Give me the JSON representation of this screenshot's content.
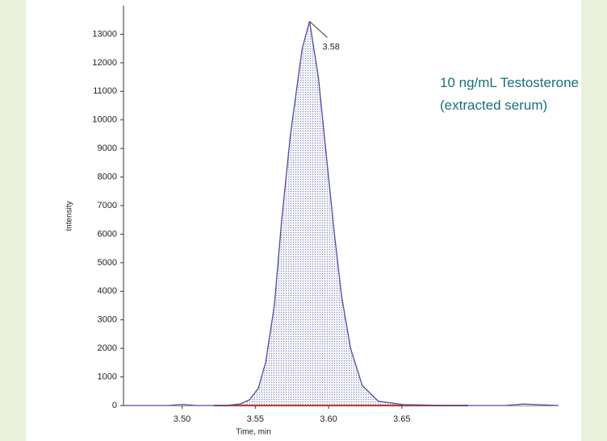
{
  "chart_data": {
    "type": "line",
    "x_label": "Time, min",
    "y_label": "Intensity",
    "annotation": [
      "10 ng/mL Testosterone",
      "(extracted serum)"
    ],
    "peak_label": "3.58",
    "x": [
      3.46,
      3.49,
      3.5,
      3.51,
      3.53,
      3.54,
      3.546,
      3.552,
      3.557,
      3.563,
      3.568,
      3.574,
      3.582,
      3.587,
      3.593,
      3.598,
      3.604,
      3.609,
      3.615,
      3.623,
      3.634,
      3.651,
      3.684,
      3.72,
      3.733,
      3.757
    ],
    "series": [
      {
        "name": "Intensity",
        "color": "#4a4fa0",
        "values": [
          0,
          0,
          40,
          0,
          0,
          60,
          200,
          600,
          1500,
          3500,
          6500,
          9500,
          12500,
          13450,
          11500,
          9000,
          6000,
          3800,
          2000,
          700,
          150,
          30,
          0,
          0,
          50,
          0
        ]
      }
    ],
    "xlim": [
      3.46,
      3.757
    ],
    "ylim": [
      0,
      14000
    ],
    "xticks": [
      {
        "value": 3.5,
        "label": "3.50"
      },
      3.55,
      {
        "value": 3.6,
        "label": "3.60"
      },
      3.65
    ],
    "yticks": [
      0,
      1000,
      2000,
      3000,
      4000,
      5000,
      6000,
      7000,
      8000,
      9000,
      10000,
      11000,
      12000,
      13000
    ]
  }
}
